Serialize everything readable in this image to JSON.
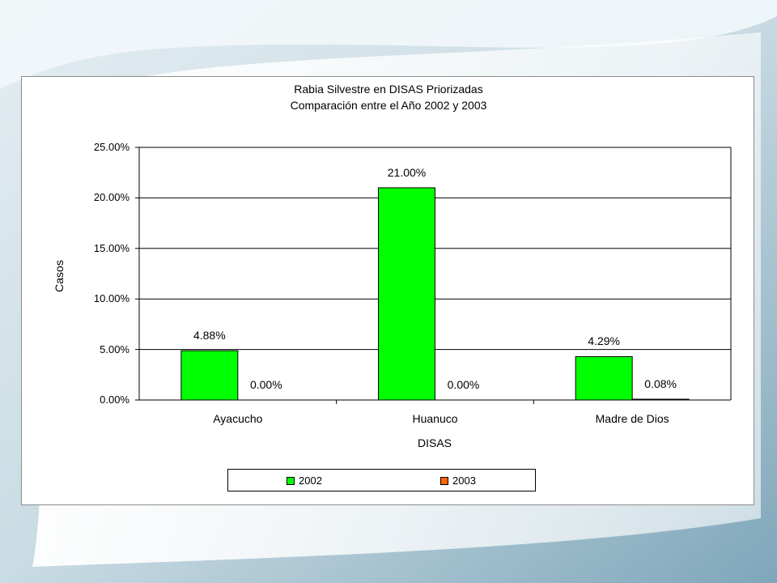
{
  "colors": {
    "series_2002": "#00ff00",
    "series_2003": "#ff6600",
    "grid": "#000000"
  },
  "chart_data": {
    "type": "bar",
    "title": [
      "Rabia Silvestre en DISAS Priorizadas",
      "Comparación entre el Año 2002 y 2003"
    ],
    "xlabel": "DISAS",
    "ylabel": "Casos",
    "categories": [
      "Ayacucho",
      "Huanuco",
      "Madre de Dios"
    ],
    "series": [
      {
        "name": "2002",
        "values": [
          4.88,
          21.0,
          4.29
        ],
        "labels": [
          "4.88%",
          "21.00%",
          "4.29%"
        ],
        "color": "#00ff00"
      },
      {
        "name": "2003",
        "values": [
          0.0,
          0.0,
          0.08
        ],
        "labels": [
          "0.00%",
          "0.00%",
          "0.08%"
        ],
        "color": "#ff6600"
      }
    ],
    "ylim": [
      0,
      25
    ],
    "yticks": [
      "0.00%",
      "5.00%",
      "10.00%",
      "15.00%",
      "20.00%",
      "25.00%"
    ],
    "grid": true,
    "legend_position": "bottom"
  }
}
